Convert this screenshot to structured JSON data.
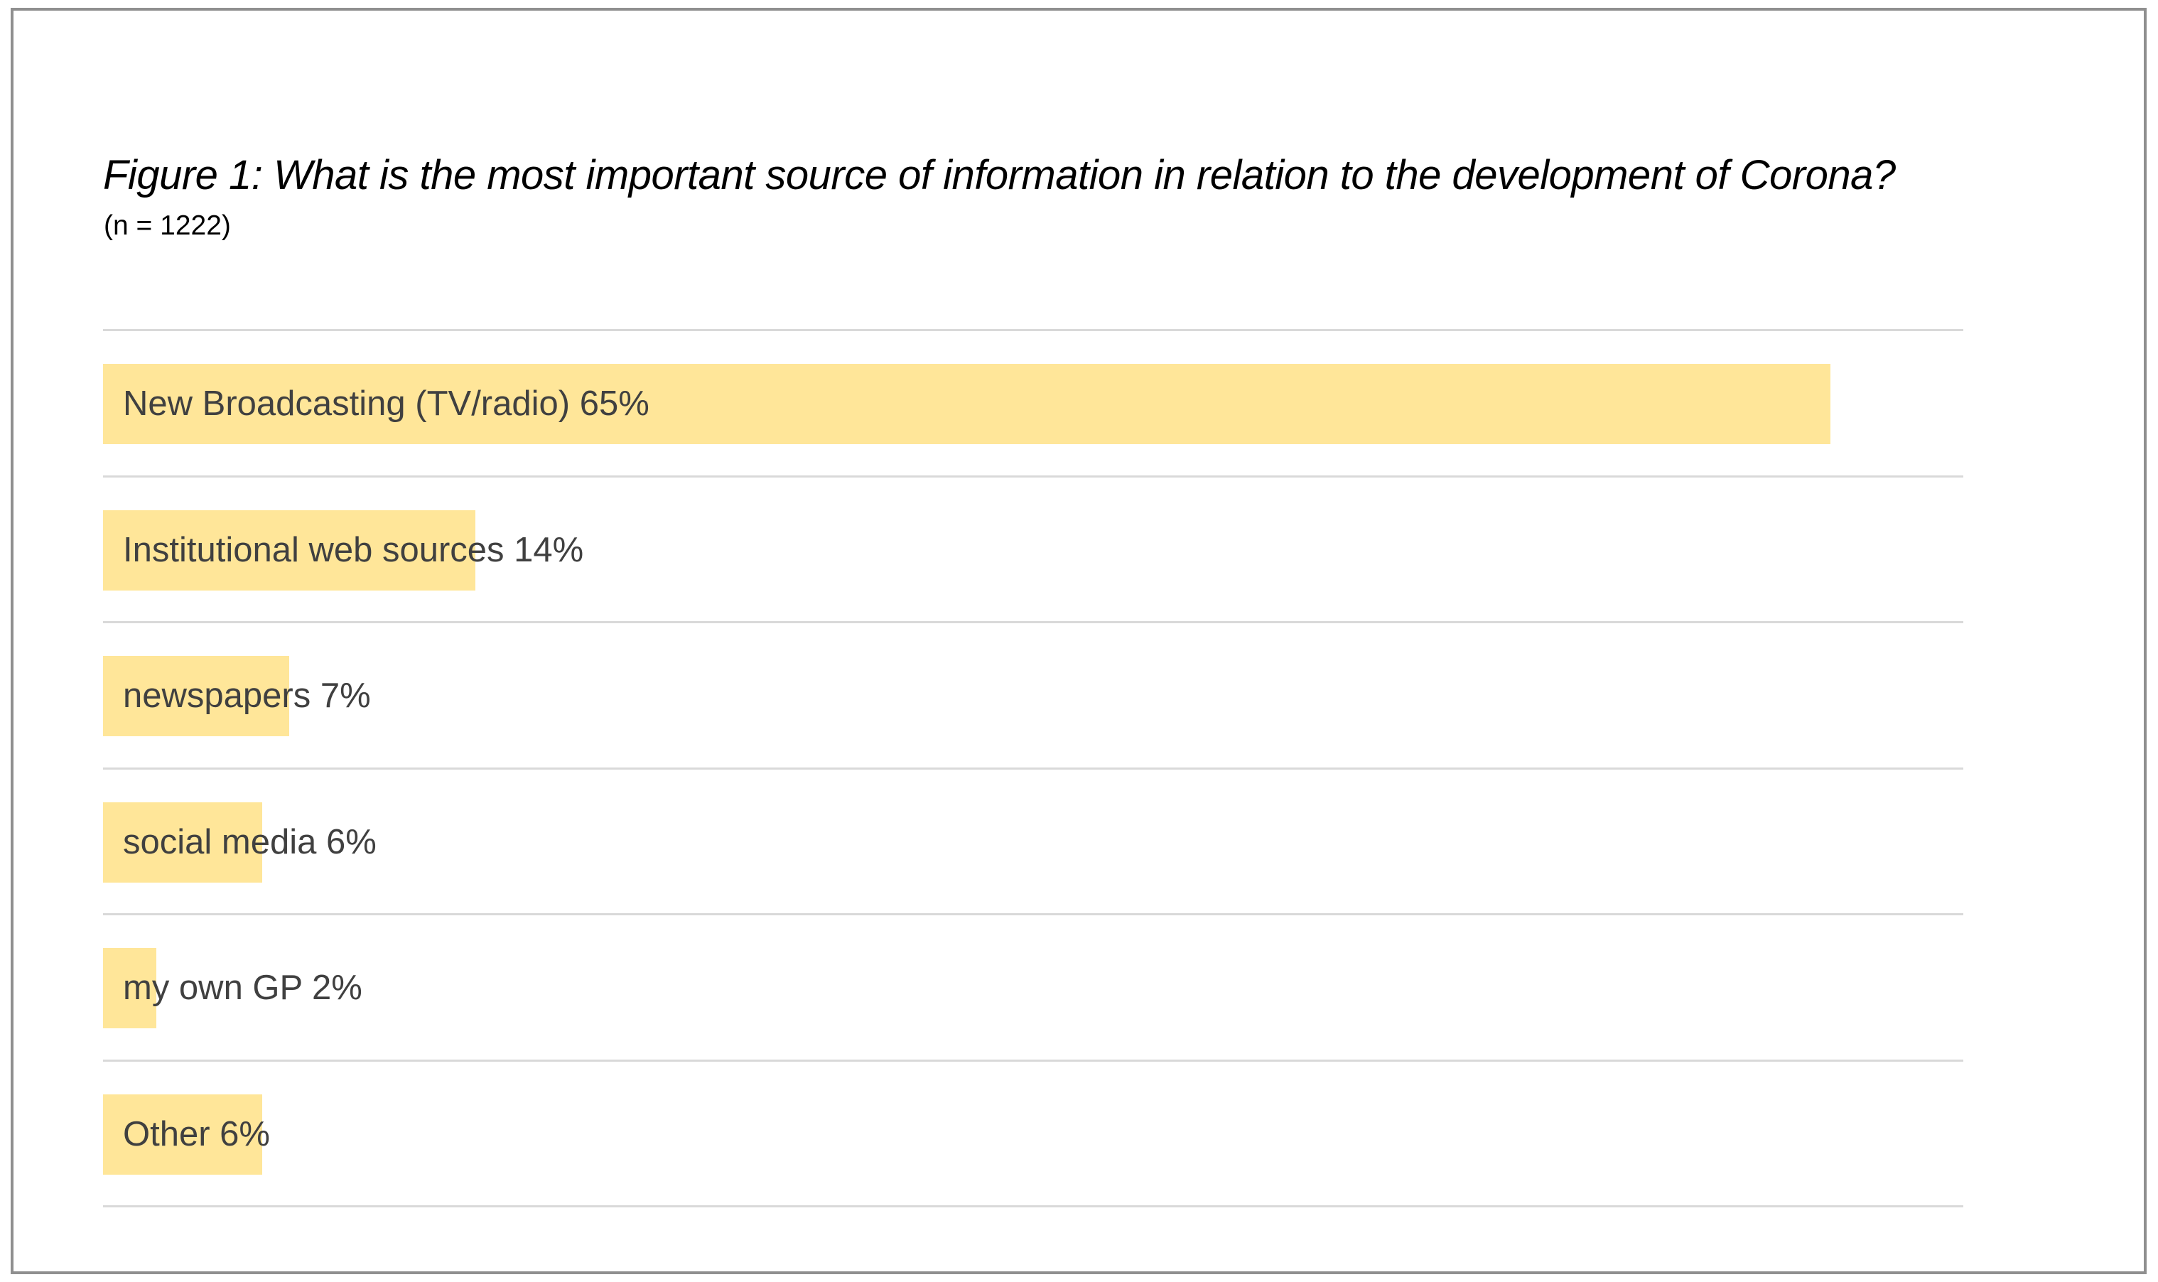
{
  "figure": {
    "title": "Figure 1: What is the most important source of information in relation to the development of Corona?",
    "subtitle": "(n = 1222)"
  },
  "chart_data": {
    "type": "bar",
    "orientation": "horizontal",
    "title": "Figure 1: What is the most important source of information in relation to the development of Corona?",
    "subtitle": "(n = 1222)",
    "sample_size": 1222,
    "categories": [
      "New Broadcasting (TV/radio)",
      "Institutional web sources",
      "newspapers",
      "social media",
      "my own GP",
      "Other"
    ],
    "values": [
      65,
      14,
      7,
      6,
      2,
      6
    ],
    "unit": "%",
    "value_labels": [
      "New Broadcasting (TV/radio) 65%",
      "Institutional web sources 14%",
      "newspapers 7%",
      "social media 6%",
      "my own GP 2%",
      "Other 6%"
    ],
    "xlim": [
      0,
      70
    ],
    "axis_ticks_visible": false,
    "legend": false,
    "grid": "horizontal-separators",
    "bar_color": "#ffe699",
    "gridline_color": "#d9d9d9",
    "label_color": "#404040",
    "border_color": "#8f8f8f"
  }
}
